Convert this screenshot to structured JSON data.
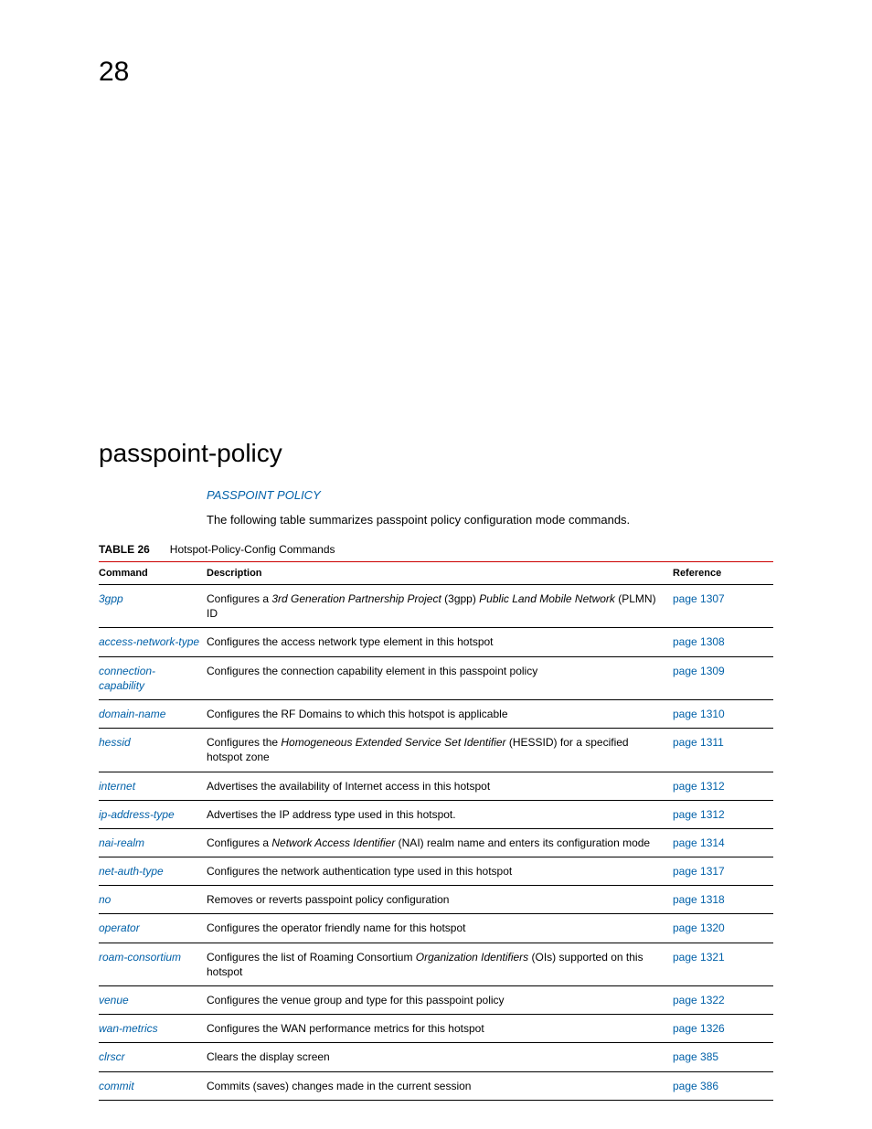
{
  "page_number": "28",
  "heading": "passpoint-policy",
  "section_link": "PASSPOINT POLICY",
  "intro": "The following table summarizes passpoint policy configuration mode commands.",
  "table": {
    "label": "TABLE 26",
    "caption": "Hotspot-Policy-Config Commands",
    "columns": {
      "command": "Command",
      "description": "Description",
      "reference": "Reference"
    },
    "rows": [
      {
        "command": "3gpp",
        "desc_pre": "Configures a ",
        "desc_ital1": "3rd Generation Partnership Project",
        "desc_mid": " (3gpp) ",
        "desc_ital2": "Public Land Mobile Network",
        "desc_post": " (PLMN) ID",
        "reference": "page 1307"
      },
      {
        "command": "access-network-type",
        "desc": "Configures the access network type element in this hotspot",
        "reference": "page 1308"
      },
      {
        "command": "connection-capability",
        "desc": "Configures the connection capability element in this passpoint policy",
        "reference": "page 1309"
      },
      {
        "command": "domain-name",
        "desc": "Configures the RF Domains to which this hotspot is applicable",
        "reference": "page 1310"
      },
      {
        "command": "hessid",
        "desc_pre": "Configures the ",
        "desc_ital1": "Homogeneous Extended Service Set Identifier",
        "desc_post": " (HESSID) for a specified hotspot zone",
        "reference": "page 1311"
      },
      {
        "command": "internet",
        "desc": "Advertises the availability of Internet access in this hotspot",
        "reference": "page 1312"
      },
      {
        "command": "ip-address-type",
        "desc": "Advertises the IP address type used in this hotspot.",
        "reference": "page 1312"
      },
      {
        "command": "nai-realm",
        "desc_pre": "Configures a ",
        "desc_ital1": "Network Access Identifier",
        "desc_post": " (NAI) realm name and enters its configuration mode",
        "reference": "page 1314"
      },
      {
        "command": "net-auth-type",
        "desc": "Configures the network authentication type used in this hotspot",
        "reference": "page 1317"
      },
      {
        "command": "no",
        "desc": "Removes or reverts passpoint policy configuration",
        "reference": "page 1318"
      },
      {
        "command": "operator",
        "desc": "Configures the operator friendly name for this hotspot",
        "reference": "page 1320"
      },
      {
        "command": "roam-consortium",
        "desc_pre": "Configures the list of Roaming Consortium ",
        "desc_ital1": "Organization Identifiers",
        "desc_post": " (OIs) supported on this hotspot",
        "reference": "page 1321"
      },
      {
        "command": "venue",
        "desc": "Configures the venue group and type for this passpoint policy",
        "reference": "page 1322"
      },
      {
        "command": "wan-metrics",
        "desc": "Configures the WAN performance metrics for this hotspot",
        "reference": "page 1326"
      },
      {
        "command": "clrscr",
        "desc": "Clears the display screen",
        "reference": "page 385"
      },
      {
        "command": "commit",
        "desc": "Commits (saves) changes made in the current session",
        "reference": "page 386"
      }
    ]
  },
  "colors": {
    "link": "#0060a8",
    "rule": "#cc0000",
    "text": "#000000",
    "background": "#ffffff"
  }
}
